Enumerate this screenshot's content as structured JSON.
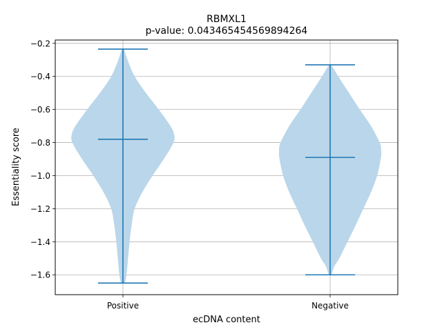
{
  "chart_data": {
    "type": "violin",
    "title": "RBMXL1",
    "subtitle": "p-value: 0.043465454569894264",
    "xlabel": "ecDNA content",
    "ylabel": "Essentiality score",
    "ylim": [
      -1.72,
      -0.18
    ],
    "yticks": [
      -1.6,
      -1.4,
      -1.2,
      -1.0,
      -0.8,
      -0.6,
      -0.4,
      -0.2
    ],
    "ytick_labels": [
      "−1.6",
      "−1.4",
      "−1.2",
      "−1.0",
      "−0.8",
      "−0.6",
      "−0.4",
      "−0.2"
    ],
    "grid": true,
    "colors": {
      "body": "#bad6ea",
      "lines": "#1f77b4",
      "grid": "#b0b0b0"
    },
    "categories": [
      "Positive",
      "Negative"
    ],
    "series": [
      {
        "category": "Positive",
        "min": -1.65,
        "median": -0.78,
        "max": -0.235,
        "density": [
          [
            -1.65,
            0.04
          ],
          [
            -1.6,
            0.07
          ],
          [
            -1.5,
            0.1
          ],
          [
            -1.4,
            0.13
          ],
          [
            -1.3,
            0.17
          ],
          [
            -1.2,
            0.23
          ],
          [
            -1.1,
            0.38
          ],
          [
            -1.0,
            0.58
          ],
          [
            -0.9,
            0.8
          ],
          [
            -0.8,
            0.99
          ],
          [
            -0.75,
            1.0
          ],
          [
            -0.7,
            0.93
          ],
          [
            -0.6,
            0.7
          ],
          [
            -0.5,
            0.45
          ],
          [
            -0.4,
            0.23
          ],
          [
            -0.3,
            0.09
          ],
          [
            -0.235,
            0.02
          ]
        ]
      },
      {
        "category": "Negative",
        "min": -1.6,
        "median": -0.89,
        "max": -0.33,
        "density": [
          [
            -1.6,
            0.03
          ],
          [
            -1.55,
            0.08
          ],
          [
            -1.5,
            0.18
          ],
          [
            -1.4,
            0.34
          ],
          [
            -1.3,
            0.5
          ],
          [
            -1.2,
            0.65
          ],
          [
            -1.1,
            0.8
          ],
          [
            -1.0,
            0.92
          ],
          [
            -0.9,
            0.99
          ],
          [
            -0.85,
            1.0
          ],
          [
            -0.8,
            0.97
          ],
          [
            -0.7,
            0.8
          ],
          [
            -0.6,
            0.58
          ],
          [
            -0.5,
            0.37
          ],
          [
            -0.4,
            0.16
          ],
          [
            -0.33,
            0.02
          ]
        ]
      }
    ]
  }
}
